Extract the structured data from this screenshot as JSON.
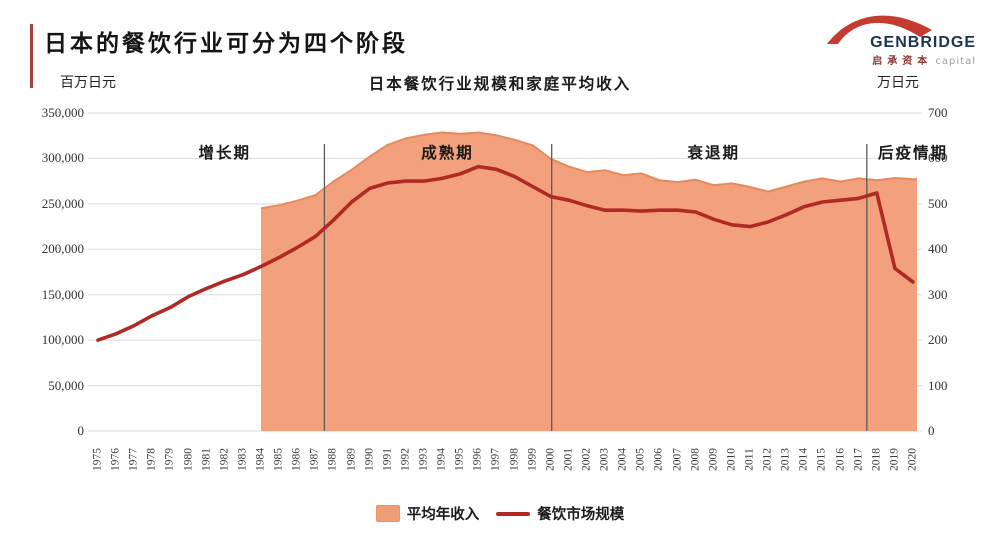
{
  "header": {
    "title": "日本的餐饮行业可分为四个阶段"
  },
  "logo": {
    "name": "GENBRIDGE",
    "subtitle_cn": "启承资本",
    "subtitle_en": "capital"
  },
  "colors": {
    "accent_bar": "#A8433C",
    "area_fill": "#F2A17C",
    "area_edge": "#E68A5C",
    "line": "#B02A23",
    "grid": "#DBDBDB",
    "divider": "#5A5A5A",
    "logo_arch": "#C43B2F"
  },
  "chart_data": {
    "type": "area",
    "title": "日本餐饮行业规模和家庭平均收入",
    "x": [
      1975,
      1976,
      1977,
      1978,
      1979,
      1980,
      1981,
      1982,
      1983,
      1984,
      1985,
      1986,
      1987,
      1988,
      1989,
      1990,
      1991,
      1992,
      1993,
      1994,
      1995,
      1996,
      1997,
      1998,
      1999,
      2000,
      2001,
      2002,
      2003,
      2004,
      2005,
      2006,
      2007,
      2008,
      2009,
      2010,
      2011,
      2012,
      2013,
      2014,
      2015,
      2016,
      2017,
      2018,
      2019,
      2020
    ],
    "series": [
      {
        "name": "平均年收入",
        "type": "area",
        "axis": "right",
        "start_year": 1984,
        "values": [
          490,
          497,
          507,
          519,
          549,
          575,
          604,
          630,
          644,
          652,
          657,
          654,
          657,
          651,
          641,
          629,
          599,
          582,
          570,
          574,
          563,
          567,
          552,
          548,
          553,
          541,
          545,
          537,
          527,
          538,
          549,
          556,
          549,
          556,
          552,
          557,
          554
        ]
      },
      {
        "name": "餐饮市场规模",
        "type": "line",
        "axis": "left",
        "values": [
          100000,
          107000,
          116000,
          127000,
          136000,
          148000,
          157000,
          165000,
          172000,
          181000,
          191000,
          202000,
          214000,
          232000,
          252000,
          267000,
          273000,
          275000,
          275000,
          278000,
          283000,
          291000,
          288000,
          280000,
          269000,
          258000,
          254000,
          248000,
          243000,
          243000,
          242000,
          243000,
          243000,
          241000,
          233000,
          227000,
          225000,
          230000,
          238000,
          247000,
          252000,
          254000,
          256000,
          262000,
          179000,
          164000
        ]
      }
    ],
    "left_axis": {
      "label": "百万日元",
      "range": [
        0,
        350000
      ],
      "tick_step": 50000,
      "ticks": [
        "0",
        "50,000",
        "100,000",
        "150,000",
        "200,000",
        "250,000",
        "300,000",
        "350,000"
      ]
    },
    "right_axis": {
      "label": "万日元",
      "range": [
        0,
        700
      ],
      "tick_step": 100,
      "ticks": [
        "0",
        "100",
        "200",
        "300",
        "400",
        "500",
        "600",
        "700"
      ]
    },
    "grid": true,
    "legend_position": "bottom-center",
    "stage_dividers_year": [
      1987.5,
      2000.05,
      2017.45
    ],
    "stages": [
      {
        "key": "growth",
        "label": "增长期",
        "center_year": 1982.0
      },
      {
        "key": "maturity",
        "label": "成熟期",
        "center_year": 1994.3
      },
      {
        "key": "decline",
        "label": "衰退期",
        "center_year": 2009.0
      },
      {
        "key": "post-pandemic",
        "label": "后疫情期",
        "center_year": 2020.0
      }
    ]
  }
}
